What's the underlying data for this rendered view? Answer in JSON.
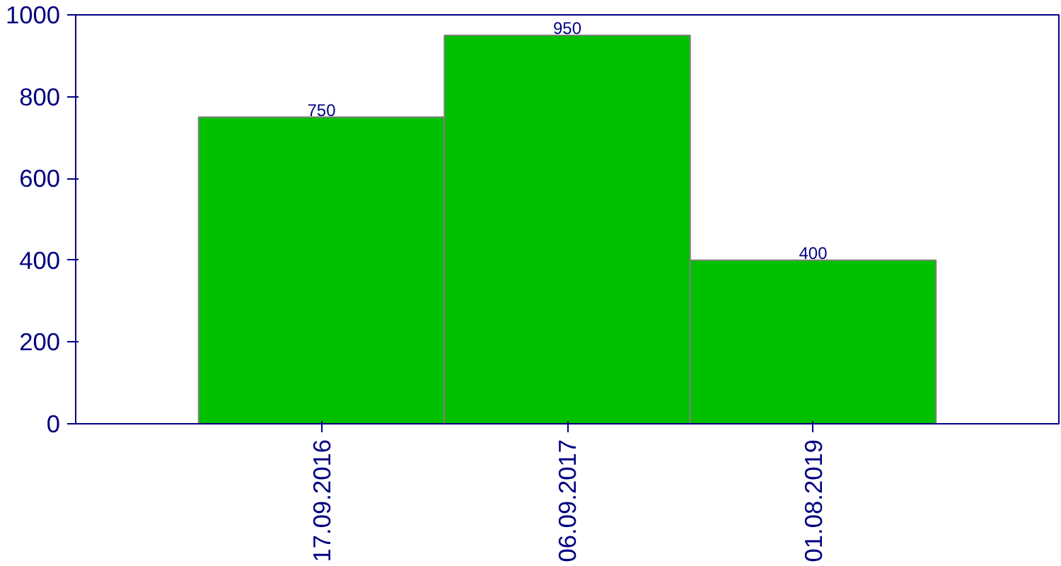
{
  "chart_data": {
    "type": "bar",
    "categories": [
      "17.09.2016",
      "06.09.2017",
      "01.08.2019"
    ],
    "values": [
      750,
      950,
      400
    ],
    "color": "#00c000",
    "ylim": [
      0,
      1000
    ],
    "yticks": [
      0,
      200,
      400,
      600,
      800,
      1000
    ],
    "grid": false,
    "data_labels": true
  }
}
